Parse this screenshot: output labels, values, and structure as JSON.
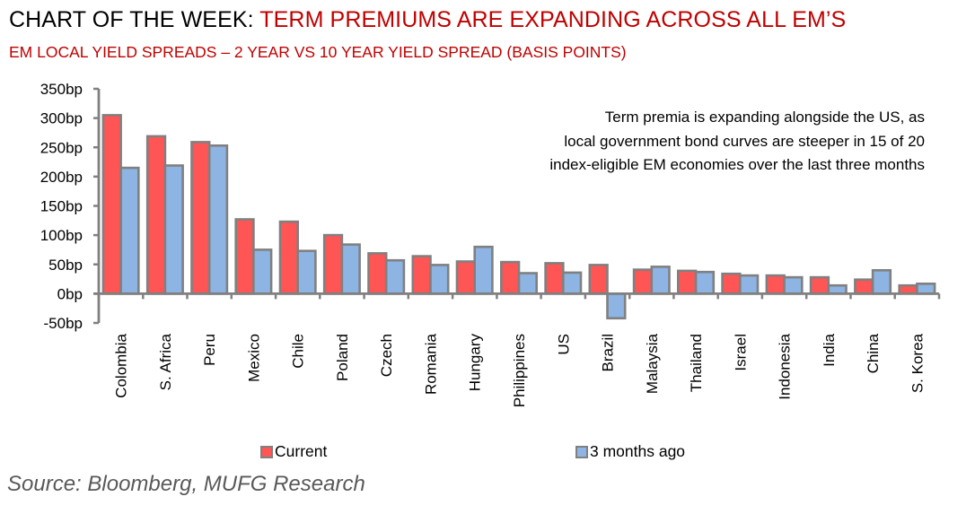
{
  "header": {
    "title_prefix": "CHART OF THE WEEK: ",
    "title_highlight": "TERM PREMIUMS ARE EXPANDING ACROSS ALL EM’S",
    "subtitle": "EM LOCAL YIELD SPREADS – 2 YEAR VS 10 YEAR YIELD SPREAD (BASIS POINTS)"
  },
  "annotation": {
    "lines": [
      "Term premia is expanding alongside the US, as",
      "local government  bond curves are steeper in 15 of 20",
      "index-eligible EM economies over the last three months"
    ]
  },
  "source": "Source: Bloomberg, MUFG Research",
  "colors": {
    "current": "#ff5555",
    "three_months_ago": "#8db4e2",
    "bar_border": "#808080",
    "axis": "#808080",
    "title_red": "#c00000",
    "source_text": "#595959"
  },
  "chart_data": {
    "type": "bar",
    "title": "EM LOCAL YIELD SPREADS – 2 YEAR VS 10 YEAR YIELD SPREAD (BASIS POINTS)",
    "xlabel": "",
    "ylabel": "",
    "ylim": [
      -50,
      350
    ],
    "yticks": [
      -50,
      0,
      50,
      100,
      150,
      200,
      250,
      300,
      350
    ],
    "ytick_labels": [
      "-50bp",
      "0bp",
      "50bp",
      "100bp",
      "150bp",
      "200bp",
      "250bp",
      "300bp",
      "350bp"
    ],
    "grid": false,
    "legend_position": "bottom",
    "categories": [
      "Colombia",
      "S. Africa",
      "Peru",
      "Mexico",
      "Chile",
      "Poland",
      "Czech",
      "Romania",
      "Hungary",
      "Philippines",
      "US",
      "Brazil",
      "Malaysia",
      "Thailand",
      "Israel",
      "Indonesia",
      "India",
      "China",
      "S. Korea"
    ],
    "series": [
      {
        "name": "Current",
        "values": [
          305,
          269,
          259,
          127,
          123,
          100,
          69,
          64,
          55,
          54,
          52,
          49,
          41,
          39,
          34,
          31,
          28,
          24,
          14
        ]
      },
      {
        "name": "3 months ago",
        "values": [
          215,
          219,
          253,
          75,
          73,
          84,
          57,
          49,
          80,
          35,
          36,
          -42,
          46,
          37,
          31,
          28,
          14,
          40,
          17
        ]
      }
    ]
  }
}
